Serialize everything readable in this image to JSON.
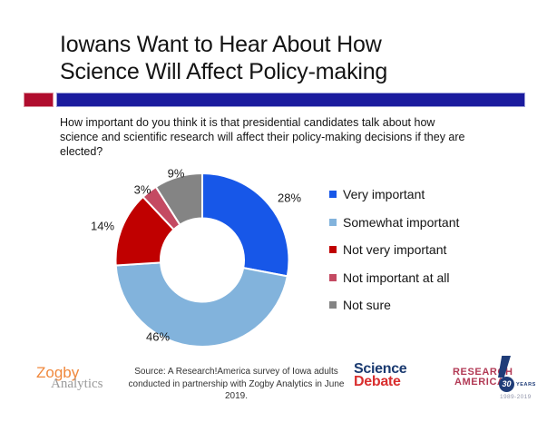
{
  "slide": {
    "title_line1": "Iowans Want to Hear About How",
    "title_line2": "Science Will Affect Policy-making",
    "question": "How important do you think it is that presidential candidates talk about how science and scientific research will affect their policy-making decisions if they are elected?",
    "accent_bar": {
      "red": "#B00D2E",
      "blue": "#1B1B9E"
    }
  },
  "chart_data": {
    "type": "pie",
    "subtype": "donut",
    "title": "",
    "categories": [
      "Very important",
      "Somewhat important",
      "Not very important",
      "Not important at all",
      "Not sure"
    ],
    "values": [
      28,
      46,
      14,
      3,
      9
    ],
    "unit": "%",
    "start_angle_deg": 0,
    "direction": "clockwise",
    "legend_position": "right",
    "slices": [
      {
        "label": "Very important",
        "value": 28,
        "pct_label": "28%",
        "color": "#1757E8"
      },
      {
        "label": "Somewhat important",
        "value": 46,
        "pct_label": "46%",
        "color": "#82B3DC"
      },
      {
        "label": "Not very important",
        "value": 14,
        "pct_label": "14%",
        "color": "#C00000"
      },
      {
        "label": "Not important at all",
        "value": 3,
        "pct_label": "3%",
        "color": "#C44A62"
      },
      {
        "label": "Not sure",
        "value": 9,
        "pct_label": "9%",
        "color": "#848484"
      }
    ]
  },
  "footer": {
    "zogby": {
      "line1": "Zogby",
      "line2": "Analytics",
      "orange": "#F0883C",
      "gray": "#9A9A9A"
    },
    "source_line1": "Source: A Research!America survey of Iowa adults",
    "source_line2": "conducted in partnership with Zogby Analytics in June 2019.",
    "science_debate": {
      "line1": "Science",
      "line2": "Debate",
      "navy": "#1A3A70",
      "red": "#D92F2F"
    },
    "research_america": {
      "line1": "RESEARCH",
      "line2": "AMERICA",
      "badge_number": "30",
      "badge_label": "YEARS",
      "year_range": "1989-2019",
      "crimson": "#B23A55",
      "navy": "#1F3C78"
    }
  }
}
